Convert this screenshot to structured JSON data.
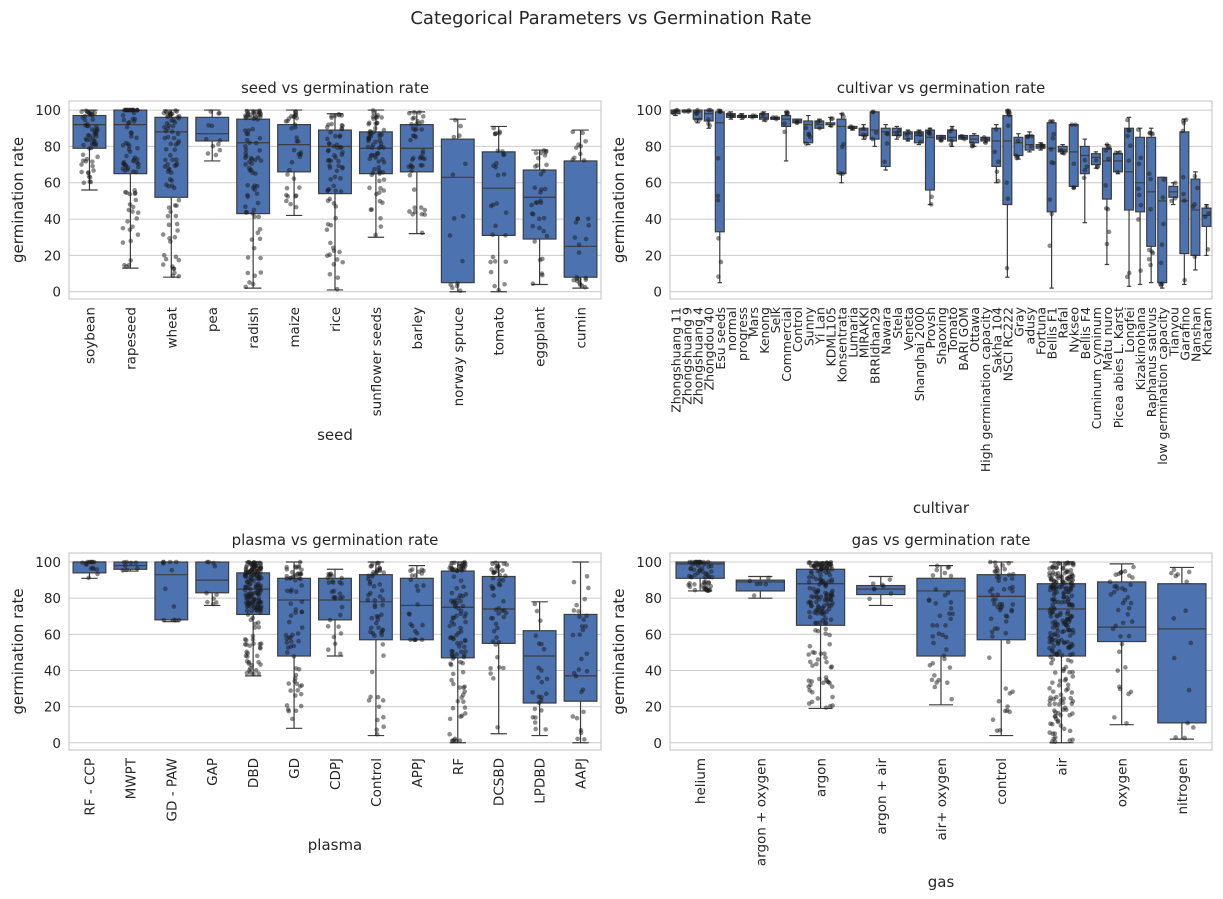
{
  "suptitle": "Categorical Parameters vs Germination Rate",
  "chart_data": [
    {
      "type": "box",
      "title": "seed vs germination rate",
      "xlabel": "seed",
      "ylabel": "germination rate",
      "ylim": [
        -4,
        105
      ],
      "yticks": [
        0,
        20,
        40,
        60,
        80,
        100
      ],
      "grid": true,
      "categories": [
        "soybean",
        "rapeseed",
        "wheat",
        "pea",
        "radish",
        "maize",
        "rice",
        "sunflower seeds",
        "barley",
        "norway spruce",
        "tomato",
        "eggplant",
        "cumin"
      ],
      "boxes": [
        {
          "whislo": 56,
          "q1": 79,
          "med": 92,
          "q3": 97,
          "whishi": 100
        },
        {
          "whislo": 13,
          "q1": 65,
          "med": 92,
          "q3": 100,
          "whishi": 100
        },
        {
          "whislo": 8,
          "q1": 52,
          "med": 88,
          "q3": 96,
          "whishi": 100
        },
        {
          "whislo": 72,
          "q1": 83,
          "med": 87,
          "q3": 96,
          "whishi": 100
        },
        {
          "whislo": 2,
          "q1": 43,
          "med": 82,
          "q3": 95,
          "whishi": 100
        },
        {
          "whislo": 42,
          "q1": 66,
          "med": 81,
          "q3": 92,
          "whishi": 100
        },
        {
          "whislo": 1,
          "q1": 54,
          "med": 80,
          "q3": 89,
          "whishi": 98
        },
        {
          "whislo": 30,
          "q1": 65,
          "med": 79,
          "q3": 88,
          "whishi": 100
        },
        {
          "whislo": 32,
          "q1": 66,
          "med": 79,
          "q3": 92,
          "whishi": 99
        },
        {
          "whislo": 0,
          "q1": 5,
          "med": 63,
          "q3": 84,
          "whishi": 95
        },
        {
          "whislo": 0,
          "q1": 31,
          "med": 57,
          "q3": 77,
          "whishi": 91
        },
        {
          "whislo": 4,
          "q1": 29,
          "med": 52,
          "q3": 67,
          "whishi": 78
        },
        {
          "whislo": 2,
          "q1": 8,
          "med": 25,
          "q3": 72,
          "whishi": 89
        }
      ],
      "points_per_box": [
        60,
        80,
        80,
        12,
        80,
        35,
        70,
        70,
        45,
        15,
        30,
        35,
        30
      ]
    },
    {
      "type": "box",
      "title": "cultivar vs germination rate",
      "xlabel": "cultivar",
      "ylabel": "germination rate",
      "ylim": [
        -4,
        105
      ],
      "yticks": [
        0,
        20,
        40,
        60,
        80,
        100
      ],
      "grid": true,
      "categories": [
        "Zhongshuang 11",
        "Zhongshuang 9",
        "Zhongshuang 4",
        "Zhongdou 40",
        "Esu seeds",
        "normal",
        "progress",
        "Mars",
        "Kenong",
        "Selk",
        "Commercial",
        "Control",
        "Sunny",
        "Yi Lan",
        "KDML105",
        "Konsentrata",
        "Lumaria",
        "MIRAKKI",
        "BRRIdhan29",
        "Nawara",
        "Stela",
        "Veneta",
        "Shanghai 2000",
        "Provsh",
        "Shaoxing",
        "Tomato",
        "BARI GOM",
        "Ottawa",
        "High germination capacity",
        "Sakha 104",
        "NSCI RC222",
        "Gray",
        "adusy",
        "Fortuna",
        "Bellis F1",
        "Rafal",
        "Nykseo",
        "Bellis F4",
        "Cuminum cyminum",
        "Matu nuro",
        "Picea abies L. Karst",
        "Longfei",
        "Kizakinohana",
        "Raphanus sativus",
        "low germination capacity",
        "Tianyou",
        "Garafino",
        "Nanshan",
        "Khatam"
      ],
      "boxes": [
        {
          "whislo": 97,
          "q1": 98,
          "med": 99,
          "q3": 100,
          "whishi": 100
        },
        {
          "whislo": 99,
          "q1": 99,
          "med": 100,
          "q3": 100,
          "whishi": 100
        },
        {
          "whislo": 93,
          "q1": 95,
          "med": 99,
          "q3": 100,
          "whishi": 100
        },
        {
          "whislo": 90,
          "q1": 94,
          "med": 98,
          "q3": 100,
          "whishi": 100
        },
        {
          "whislo": 5,
          "q1": 33,
          "med": 93,
          "q3": 99,
          "whishi": 100
        },
        {
          "whislo": 95,
          "q1": 96,
          "med": 97,
          "q3": 98,
          "whishi": 99
        },
        {
          "whislo": 95,
          "q1": 96,
          "med": 96,
          "q3": 97,
          "whishi": 98
        },
        {
          "whislo": 96,
          "q1": 96,
          "med": 96,
          "q3": 97,
          "whishi": 97
        },
        {
          "whislo": 94,
          "q1": 95,
          "med": 96,
          "q3": 98,
          "whishi": 99
        },
        {
          "whislo": 95,
          "q1": 95,
          "med": 95,
          "q3": 96,
          "whishi": 96
        },
        {
          "whislo": 72,
          "q1": 91,
          "med": 95,
          "q3": 97,
          "whishi": 99
        },
        {
          "whislo": 93,
          "q1": 93,
          "med": 94,
          "q3": 95,
          "whishi": 95
        },
        {
          "whislo": 81,
          "q1": 82,
          "med": 92,
          "q3": 94,
          "whishi": 97
        },
        {
          "whislo": 90,
          "q1": 90,
          "med": 92,
          "q3": 94,
          "whishi": 95
        },
        {
          "whislo": 91,
          "q1": 92,
          "med": 92,
          "q3": 93,
          "whishi": 96
        },
        {
          "whislo": 60,
          "q1": 65,
          "med": 91,
          "q3": 95,
          "whishi": 98
        },
        {
          "whislo": 89,
          "q1": 90,
          "med": 90,
          "q3": 91,
          "whishi": 91
        },
        {
          "whislo": 84,
          "q1": 86,
          "med": 89,
          "q3": 90,
          "whishi": 92
        },
        {
          "whislo": 80,
          "q1": 84,
          "med": 89,
          "q3": 99,
          "whishi": 99
        },
        {
          "whislo": 67,
          "q1": 69,
          "med": 88,
          "q3": 90,
          "whishi": 92
        },
        {
          "whislo": 84,
          "q1": 86,
          "med": 88,
          "q3": 90,
          "whishi": 91
        },
        {
          "whislo": 83,
          "q1": 84,
          "med": 87,
          "q3": 88,
          "whishi": 89
        },
        {
          "whislo": 81,
          "q1": 82,
          "med": 86,
          "q3": 88,
          "whishi": 89
        },
        {
          "whislo": 48,
          "q1": 56,
          "med": 85,
          "q3": 89,
          "whishi": 90
        },
        {
          "whislo": 83,
          "q1": 84,
          "med": 85,
          "q3": 86,
          "whishi": 86
        },
        {
          "whislo": 80,
          "q1": 83,
          "med": 85,
          "q3": 89,
          "whishi": 91
        },
        {
          "whislo": 84,
          "q1": 84,
          "med": 85,
          "q3": 86,
          "whishi": 86
        },
        {
          "whislo": 80,
          "q1": 82,
          "med": 84,
          "q3": 86,
          "whishi": 87
        },
        {
          "whislo": 82,
          "q1": 83,
          "med": 84,
          "q3": 85,
          "whishi": 85
        },
        {
          "whislo": 60,
          "q1": 69,
          "med": 83,
          "q3": 90,
          "whishi": 92
        },
        {
          "whislo": 8,
          "q1": 48,
          "med": 83,
          "q3": 97,
          "whishi": 100
        },
        {
          "whislo": 73,
          "q1": 75,
          "med": 82,
          "q3": 85,
          "whishi": 87
        },
        {
          "whislo": 77,
          "q1": 78,
          "med": 81,
          "q3": 86,
          "whishi": 88
        },
        {
          "whislo": 78,
          "q1": 79,
          "med": 80,
          "q3": 81,
          "whishi": 82
        },
        {
          "whislo": 2,
          "q1": 44,
          "med": 79,
          "q3": 93,
          "whishi": 94
        },
        {
          "whislo": 76,
          "q1": 77,
          "med": 78,
          "q3": 80,
          "whishi": 81
        },
        {
          "whislo": 57,
          "q1": 58,
          "med": 77,
          "q3": 92,
          "whishi": 92
        },
        {
          "whislo": 38,
          "q1": 65,
          "med": 75,
          "q3": 80,
          "whishi": 84
        },
        {
          "whislo": 68,
          "q1": 70,
          "med": 74,
          "q3": 76,
          "whishi": 77
        },
        {
          "whislo": 15,
          "q1": 51,
          "med": 72,
          "q3": 79,
          "whishi": 81
        },
        {
          "whislo": 65,
          "q1": 66,
          "med": 72,
          "q3": 76,
          "whishi": 77
        },
        {
          "whislo": 3,
          "q1": 45,
          "med": 66,
          "q3": 90,
          "whishi": 96
        },
        {
          "whislo": 4,
          "q1": 44,
          "med": 60,
          "q3": 85,
          "whishi": 90
        },
        {
          "whislo": 5,
          "q1": 25,
          "med": 55,
          "q3": 85,
          "whishi": 90
        },
        {
          "whislo": 2,
          "q1": 5,
          "med": 50,
          "q3": 63,
          "whishi": 63
        },
        {
          "whislo": 48,
          "q1": 52,
          "med": 55,
          "q3": 58,
          "whishi": 60
        },
        {
          "whislo": 4,
          "q1": 21,
          "med": 50,
          "q3": 88,
          "whishi": 95
        },
        {
          "whislo": 12,
          "q1": 20,
          "med": 45,
          "q3": 62,
          "whishi": 66
        },
        {
          "whislo": 20,
          "q1": 36,
          "med": 42,
          "q3": 46,
          "whishi": 48
        }
      ],
      "points_per_box": [
        4,
        3,
        5,
        5,
        10,
        3,
        3,
        3,
        3,
        3,
        6,
        3,
        5,
        3,
        3,
        6,
        3,
        4,
        4,
        4,
        3,
        3,
        4,
        6,
        3,
        4,
        3,
        3,
        3,
        5,
        10,
        4,
        4,
        3,
        10,
        3,
        5,
        4,
        3,
        10,
        3,
        8,
        8,
        12,
        8,
        3,
        8,
        5,
        4
      ]
    },
    {
      "type": "box",
      "title": "plasma vs germination rate",
      "xlabel": "plasma",
      "ylabel": "germination rate",
      "ylim": [
        -4,
        105
      ],
      "yticks": [
        0,
        20,
        40,
        60,
        80,
        100
      ],
      "grid": true,
      "categories": [
        "RF - CCP",
        "MWPT",
        "GD - PAW",
        "GAP",
        "DBD",
        "GD",
        "CDPJ",
        "Control",
        "APPJ",
        "RF",
        "DCSBD",
        "LPDBD",
        "AAPJ"
      ],
      "boxes": [
        {
          "whislo": 91,
          "q1": 94,
          "med": 100,
          "q3": 100,
          "whishi": 100
        },
        {
          "whislo": 95,
          "q1": 96,
          "med": 98,
          "q3": 100,
          "whishi": 100
        },
        {
          "whislo": 67,
          "q1": 68,
          "med": 93,
          "q3": 100,
          "whishi": 100
        },
        {
          "whislo": 76,
          "q1": 83,
          "med": 90,
          "q3": 100,
          "whishi": 100
        },
        {
          "whislo": 37,
          "q1": 71,
          "med": 85,
          "q3": 94,
          "whishi": 100
        },
        {
          "whislo": 8,
          "q1": 48,
          "med": 79,
          "q3": 91,
          "whishi": 100
        },
        {
          "whislo": 48,
          "q1": 68,
          "med": 79,
          "q3": 91,
          "whishi": 96
        },
        {
          "whislo": 4,
          "q1": 57,
          "med": 78,
          "q3": 93,
          "whishi": 100
        },
        {
          "whislo": 57,
          "q1": 57,
          "med": 76,
          "q3": 91,
          "whishi": 98
        },
        {
          "whislo": 0,
          "q1": 47,
          "med": 75,
          "q3": 95,
          "whishi": 100
        },
        {
          "whislo": 5,
          "q1": 55,
          "med": 74,
          "q3": 92,
          "whishi": 100
        },
        {
          "whislo": 4,
          "q1": 22,
          "med": 48,
          "q3": 62,
          "whishi": 78
        },
        {
          "whislo": 0,
          "q1": 23,
          "med": 37,
          "q3": 71,
          "whishi": 100
        }
      ],
      "points_per_box": [
        15,
        8,
        12,
        10,
        180,
        70,
        30,
        60,
        25,
        110,
        50,
        25,
        30
      ]
    },
    {
      "type": "box",
      "title": "gas vs germination rate",
      "xlabel": "gas",
      "ylabel": "germination rate",
      "ylim": [
        -4,
        105
      ],
      "yticks": [
        0,
        20,
        40,
        60,
        80,
        100
      ],
      "grid": true,
      "categories": [
        "helium",
        "argon + oxygen",
        "argon",
        "argon + air",
        "air+ oxygen",
        "control",
        "air",
        "oxygen",
        "nitrogen"
      ],
      "boxes": [
        {
          "whislo": 84,
          "q1": 91,
          "med": 99,
          "q3": 100,
          "whishi": 100
        },
        {
          "whislo": 80,
          "q1": 84,
          "med": 89,
          "q3": 90,
          "whishi": 92
        },
        {
          "whislo": 19,
          "q1": 65,
          "med": 88,
          "q3": 96,
          "whishi": 100
        },
        {
          "whislo": 76,
          "q1": 82,
          "med": 85,
          "q3": 87,
          "whishi": 92
        },
        {
          "whislo": 21,
          "q1": 48,
          "med": 84,
          "q3": 91,
          "whishi": 98
        },
        {
          "whislo": 4,
          "q1": 57,
          "med": 81,
          "q3": 93,
          "whishi": 100
        },
        {
          "whislo": 0,
          "q1": 48,
          "med": 74,
          "q3": 88,
          "whishi": 100
        },
        {
          "whislo": 10,
          "q1": 56,
          "med": 64,
          "q3": 89,
          "whishi": 99
        },
        {
          "whislo": 2,
          "q1": 11,
          "med": 63,
          "q3": 88,
          "whishi": 97
        }
      ],
      "points_per_box": [
        60,
        6,
        170,
        8,
        40,
        60,
        250,
        40,
        15
      ]
    }
  ],
  "colors": {
    "box_fill": "#4c72b0",
    "box_line": "#3d3d3d",
    "point": "#1a1a1a",
    "grid": "#cccccc",
    "spine": "#cccccc",
    "text": "#262626"
  }
}
